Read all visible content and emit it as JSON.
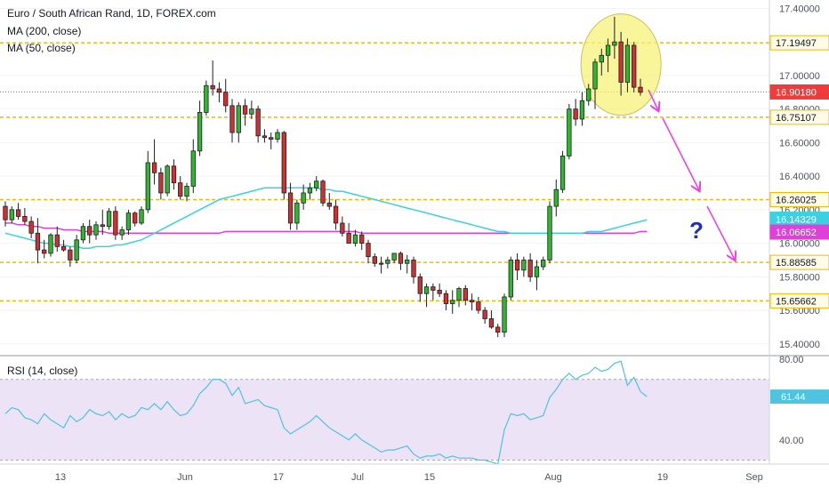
{
  "legend": {
    "title": "Euro / South African Rand, 1D, FOREX.com",
    "ma200": "MA (200, close)",
    "ma50": "MA (50, close)"
  },
  "rsi_title": "RSI (14, close)",
  "question_mark": "?",
  "colors": {
    "up": "#26a69a",
    "up_fill": "#2db82d",
    "down": "#d32f2f",
    "ma50": "#3ad1e0",
    "ma200": "#e040d8",
    "level": "#f5b800",
    "current": "#ef3b3b",
    "rsi_line": "#4fc3e0",
    "rsi_band": "#ede3f7",
    "arrow": "#ea3ee8",
    "question": "#1e2fb5",
    "highlight": "#f6f27a"
  },
  "chart_data": [
    {
      "type": "candlestick",
      "title": "Euro / South African Rand, 1D, FOREX.com",
      "y_ticks": [
        "17.40000",
        "17.00000",
        "16.80000",
        "16.60000",
        "16.40000",
        "16.20000",
        "16.00000",
        "15.80000",
        "15.60000",
        "15.40000"
      ],
      "x_ticks": [
        "13",
        "Jun",
        "17",
        "Jul",
        "15",
        "Aug",
        "19",
        "Sep"
      ],
      "ylim": [
        15.33,
        17.45
      ],
      "levels": [
        17.19497,
        16.75107,
        16.26025,
        15.88585,
        15.65662
      ],
      "price_tags": [
        {
          "label": "17.19497",
          "value": 17.19497,
          "kind": "level"
        },
        {
          "label": "16.90180",
          "value": 16.9018,
          "kind": "current"
        },
        {
          "label": "16.75107",
          "value": 16.75107,
          "kind": "level"
        },
        {
          "label": "16.26025",
          "value": 16.26025,
          "kind": "level"
        },
        {
          "label": "16.14329",
          "value": 16.14329,
          "kind": "ma50"
        },
        {
          "label": "16.06652",
          "value": 16.06652,
          "kind": "ma200"
        },
        {
          "label": "15.88585",
          "value": 15.88585,
          "kind": "level"
        },
        {
          "label": "15.65662",
          "value": 15.65662,
          "kind": "level"
        }
      ],
      "current_price": 16.9018,
      "candles": [
        [
          16.22,
          16.25,
          16.1,
          16.14
        ],
        [
          16.14,
          16.22,
          16.12,
          16.2
        ],
        [
          16.2,
          16.24,
          16.14,
          16.16
        ],
        [
          16.16,
          16.21,
          16.11,
          16.13
        ],
        [
          16.13,
          16.16,
          16.03,
          16.06
        ],
        [
          16.06,
          16.15,
          15.88,
          15.96
        ],
        [
          15.96,
          16.02,
          15.91,
          15.94
        ],
        [
          15.94,
          16.06,
          15.92,
          16.05
        ],
        [
          16.05,
          16.1,
          15.95,
          15.98
        ],
        [
          15.98,
          16.02,
          15.95,
          15.96
        ],
        [
          15.96,
          15.98,
          15.86,
          15.9
        ],
        [
          15.9,
          16.05,
          15.88,
          16.02
        ],
        [
          16.02,
          16.12,
          16.0,
          16.1
        ],
        [
          16.1,
          16.14,
          16.0,
          16.05
        ],
        [
          16.05,
          16.13,
          16.02,
          16.11
        ],
        [
          16.11,
          16.2,
          16.05,
          16.1
        ],
        [
          16.1,
          16.21,
          16.08,
          16.19
        ],
        [
          16.19,
          16.22,
          16.02,
          16.05
        ],
        [
          16.05,
          16.1,
          16.02,
          16.08
        ],
        [
          16.08,
          16.2,
          16.05,
          16.18
        ],
        [
          16.18,
          16.19,
          16.1,
          16.12
        ],
        [
          16.12,
          16.22,
          16.11,
          16.2
        ],
        [
          16.2,
          16.55,
          16.18,
          16.48
        ],
        [
          16.48,
          16.62,
          16.35,
          16.42
        ],
        [
          16.42,
          16.45,
          16.26,
          16.3
        ],
        [
          16.3,
          16.47,
          16.28,
          16.46
        ],
        [
          16.46,
          16.5,
          16.32,
          16.36
        ],
        [
          16.36,
          16.4,
          16.26,
          16.28
        ],
        [
          16.28,
          16.36,
          16.25,
          16.34
        ],
        [
          16.34,
          16.62,
          16.3,
          16.55
        ],
        [
          16.55,
          16.85,
          16.52,
          16.78
        ],
        [
          16.78,
          16.97,
          16.76,
          16.94
        ],
        [
          16.94,
          17.09,
          16.88,
          16.92
        ],
        [
          16.92,
          16.96,
          16.84,
          16.9
        ],
        [
          16.9,
          16.98,
          16.78,
          16.82
        ],
        [
          16.82,
          16.86,
          16.6,
          16.66
        ],
        [
          16.66,
          16.84,
          16.6,
          16.82
        ],
        [
          16.82,
          16.86,
          16.7,
          16.77
        ],
        [
          16.77,
          16.85,
          16.74,
          16.8
        ],
        [
          16.8,
          16.82,
          16.6,
          16.64
        ],
        [
          16.64,
          16.68,
          16.6,
          16.63
        ],
        [
          16.63,
          16.66,
          16.56,
          16.62
        ],
        [
          16.62,
          16.68,
          16.6,
          16.66
        ],
        [
          16.66,
          16.67,
          16.26,
          16.3
        ],
        [
          16.3,
          16.36,
          16.08,
          16.12
        ],
        [
          16.12,
          16.26,
          16.08,
          16.24
        ],
        [
          16.24,
          16.35,
          16.2,
          16.3
        ],
        [
          16.3,
          16.36,
          16.26,
          16.33
        ],
        [
          16.33,
          16.4,
          16.31,
          16.37
        ],
        [
          16.37,
          16.38,
          16.22,
          16.24
        ],
        [
          16.24,
          16.3,
          16.2,
          16.22
        ],
        [
          16.22,
          16.26,
          16.08,
          16.12
        ],
        [
          16.12,
          16.16,
          16.04,
          16.06
        ],
        [
          16.06,
          16.12,
          16.0,
          16.0
        ],
        [
          16.0,
          16.08,
          15.98,
          16.05
        ],
        [
          16.05,
          16.07,
          15.96,
          16.0
        ],
        [
          16.0,
          16.02,
          15.88,
          15.92
        ],
        [
          15.92,
          15.94,
          15.86,
          15.88
        ],
        [
          15.88,
          15.92,
          15.82,
          15.88
        ],
        [
          15.88,
          15.92,
          15.85,
          15.9
        ],
        [
          15.9,
          15.94,
          15.88,
          15.94
        ],
        [
          15.94,
          15.95,
          15.84,
          15.88
        ],
        [
          15.88,
          15.93,
          15.82,
          15.9
        ],
        [
          15.9,
          15.92,
          15.76,
          15.8
        ],
        [
          15.8,
          15.82,
          15.65,
          15.7
        ],
        [
          15.7,
          15.76,
          15.62,
          15.74
        ],
        [
          15.74,
          15.76,
          15.66,
          15.72
        ],
        [
          15.72,
          15.76,
          15.68,
          15.7
        ],
        [
          15.7,
          15.72,
          15.6,
          15.64
        ],
        [
          15.64,
          15.72,
          15.58,
          15.66
        ],
        [
          15.66,
          15.74,
          15.62,
          15.73
        ],
        [
          15.73,
          15.75,
          15.63,
          15.66
        ],
        [
          15.66,
          15.7,
          15.6,
          15.65
        ],
        [
          15.65,
          15.68,
          15.58,
          15.6
        ],
        [
          15.6,
          15.62,
          15.52,
          15.55
        ],
        [
          15.55,
          15.6,
          15.49,
          15.5
        ],
        [
          15.5,
          15.52,
          15.44,
          15.47
        ],
        [
          15.47,
          15.7,
          15.44,
          15.68
        ],
        [
          15.68,
          15.92,
          15.66,
          15.9
        ],
        [
          15.9,
          15.94,
          15.78,
          15.84
        ],
        [
          15.84,
          15.92,
          15.8,
          15.9
        ],
        [
          15.9,
          15.94,
          15.77,
          15.8
        ],
        [
          15.8,
          15.9,
          15.72,
          15.86
        ],
        [
          15.86,
          15.92,
          15.84,
          15.9
        ],
        [
          15.9,
          16.25,
          15.88,
          16.22
        ],
        [
          16.22,
          16.38,
          16.16,
          16.32
        ],
        [
          16.32,
          16.55,
          16.3,
          16.52
        ],
        [
          16.52,
          16.83,
          16.5,
          16.8
        ],
        [
          16.8,
          16.86,
          16.7,
          16.74
        ],
        [
          16.74,
          16.9,
          16.7,
          16.85
        ],
        [
          16.85,
          16.95,
          16.82,
          16.92
        ],
        [
          16.92,
          17.1,
          16.8,
          17.08
        ],
        [
          17.08,
          17.16,
          17.0,
          17.12
        ],
        [
          17.12,
          17.22,
          17.02,
          17.18
        ],
        [
          17.18,
          17.35,
          17.1,
          17.2
        ],
        [
          17.2,
          17.26,
          16.88,
          16.96
        ],
        [
          16.96,
          17.22,
          16.9,
          17.18
        ],
        [
          17.18,
          17.2,
          16.9,
          16.93
        ],
        [
          16.93,
          16.98,
          16.88,
          16.9
        ]
      ],
      "ma50": [
        16.06,
        16.05,
        16.04,
        16.03,
        16.02,
        16.01,
        16.0,
        16.0,
        15.99,
        15.99,
        15.98,
        15.98,
        15.97,
        15.97,
        15.98,
        15.98,
        15.98,
        15.99,
        15.99,
        16.0,
        16.01,
        16.02,
        16.04,
        16.06,
        16.08,
        16.1,
        16.12,
        16.14,
        16.16,
        16.18,
        16.2,
        16.22,
        16.24,
        16.26,
        16.27,
        16.28,
        16.29,
        16.3,
        16.31,
        16.32,
        16.33,
        16.33,
        16.33,
        16.33,
        16.33,
        16.33,
        16.33,
        16.33,
        16.33,
        16.32,
        16.32,
        16.31,
        16.31,
        16.3,
        16.29,
        16.28,
        16.27,
        16.26,
        16.25,
        16.24,
        16.23,
        16.22,
        16.21,
        16.2,
        16.19,
        16.18,
        16.17,
        16.16,
        16.15,
        16.14,
        16.13,
        16.12,
        16.11,
        16.1,
        16.09,
        16.08,
        16.07,
        16.07,
        16.06,
        16.06,
        16.06,
        16.06,
        16.06,
        16.06,
        16.06,
        16.06,
        16.06,
        16.06,
        16.06,
        16.06,
        16.07,
        16.07,
        16.07,
        16.08,
        16.09,
        16.1,
        16.11,
        16.12,
        16.13,
        16.14
      ],
      "ma200": [
        16.12,
        16.12,
        16.11,
        16.11,
        16.1,
        16.1,
        16.09,
        16.09,
        16.09,
        16.08,
        16.08,
        16.08,
        16.07,
        16.07,
        16.07,
        16.07,
        16.06,
        16.06,
        16.06,
        16.06,
        16.06,
        16.06,
        16.06,
        16.06,
        16.06,
        16.06,
        16.06,
        16.06,
        16.06,
        16.06,
        16.06,
        16.06,
        16.06,
        16.06,
        16.07,
        16.07,
        16.07,
        16.07,
        16.07,
        16.07,
        16.07,
        16.07,
        16.07,
        16.07,
        16.07,
        16.07,
        16.07,
        16.07,
        16.07,
        16.07,
        16.07,
        16.07,
        16.07,
        16.07,
        16.07,
        16.06,
        16.06,
        16.06,
        16.06,
        16.06,
        16.06,
        16.06,
        16.06,
        16.06,
        16.06,
        16.06,
        16.06,
        16.06,
        16.06,
        16.06,
        16.06,
        16.06,
        16.06,
        16.06,
        16.06,
        16.06,
        16.06,
        16.06,
        16.06,
        16.06,
        16.06,
        16.06,
        16.06,
        16.06,
        16.06,
        16.06,
        16.06,
        16.06,
        16.06,
        16.06,
        16.06,
        16.06,
        16.06,
        16.06,
        16.06,
        16.06,
        16.06,
        16.06,
        16.07,
        16.07
      ]
    },
    {
      "type": "line",
      "title": "RSI (14, close)",
      "ylim": [
        28,
        80
      ],
      "band": [
        30,
        70
      ],
      "y_ticks": [
        "80.00",
        "40.00"
      ],
      "current_label": "61.44",
      "current_value": 61.44,
      "values": [
        53,
        56,
        55,
        51,
        50,
        48,
        53,
        50,
        48,
        46,
        52,
        49,
        51,
        55,
        53,
        52,
        54,
        50,
        53,
        51,
        52,
        56,
        55,
        58,
        55,
        59,
        55,
        52,
        53,
        57,
        63,
        66,
        70,
        70,
        68,
        62,
        66,
        58,
        59,
        60,
        57,
        56,
        55,
        46,
        43,
        45,
        47,
        49,
        52,
        49,
        46,
        44,
        42,
        40,
        43,
        40,
        38,
        36,
        34,
        35,
        35,
        36,
        37,
        33,
        31,
        32,
        32,
        33,
        31,
        32,
        31,
        31,
        31,
        30,
        30,
        29,
        28,
        45,
        53,
        52,
        53,
        50,
        51,
        52,
        61,
        65,
        70,
        73,
        70,
        72,
        73,
        76,
        74,
        75,
        78,
        79,
        67,
        71,
        64,
        61.44
      ]
    }
  ]
}
